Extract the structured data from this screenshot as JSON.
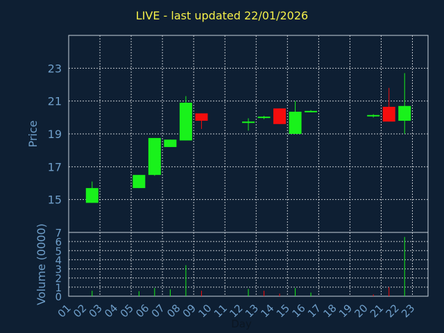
{
  "title": "LIVE - last updated 22/01/2026",
  "chart_data": [
    {
      "type": "candlestick",
      "ylabel": "Price",
      "ylim": [
        13,
        25
      ],
      "y_ticks": [
        15,
        17,
        19,
        21,
        23
      ],
      "grid": true,
      "candles": [
        {
          "day": 2,
          "open": 14.8,
          "close": 15.7,
          "high": 16.1,
          "low": 14.8
        },
        {
          "day": 5,
          "open": 15.7,
          "close": 16.5,
          "high": 16.5,
          "low": 15.7
        },
        {
          "day": 6,
          "open": 16.5,
          "close": 18.75,
          "high": 18.75,
          "low": 16.45
        },
        {
          "day": 7,
          "open": 18.2,
          "close": 18.65,
          "high": 18.65,
          "low": 18.2
        },
        {
          "day": 8,
          "open": 18.6,
          "close": 20.9,
          "high": 21.3,
          "low": 18.6
        },
        {
          "day": 9,
          "open": 20.25,
          "close": 19.8,
          "high": 20.25,
          "low": 19.3
        },
        {
          "day": 12,
          "open": 19.75,
          "close": 19.75,
          "high": 19.95,
          "low": 19.2
        },
        {
          "day": 13,
          "open": 20.05,
          "close": 20.05,
          "high": 20.1,
          "low": 19.9
        },
        {
          "day": 14,
          "open": 20.55,
          "close": 19.6,
          "high": 20.55,
          "low": 19.6
        },
        {
          "day": 15,
          "open": 19.0,
          "close": 20.35,
          "high": 21.0,
          "low": 19.0
        },
        {
          "day": 16,
          "open": 20.4,
          "close": 20.4,
          "high": 20.45,
          "low": 20.35
        },
        {
          "day": 20,
          "open": 20.15,
          "close": 20.15,
          "high": 20.2,
          "low": 20.0
        },
        {
          "day": 21,
          "open": 20.65,
          "close": 19.75,
          "high": 21.8,
          "low": 19.75
        },
        {
          "day": 22,
          "open": 19.8,
          "close": 20.7,
          "high": 22.7,
          "low": 19.0
        }
      ]
    },
    {
      "type": "bar",
      "ylabel": "Volume (0000)",
      "xlabel": "Day",
      "ylim": [
        0,
        7
      ],
      "y_ticks": [
        0,
        1,
        2,
        3,
        4,
        5,
        6,
        7
      ],
      "grid": true,
      "categories": [
        "01",
        "02",
        "03",
        "04",
        "05",
        "06",
        "07",
        "08",
        "09",
        "10",
        "11",
        "12",
        "13",
        "14",
        "15",
        "16",
        "17",
        "18",
        "19",
        "20",
        "21",
        "22",
        "23"
      ],
      "volumes": [
        {
          "day": 2,
          "value": 0.6,
          "up": true
        },
        {
          "day": 5,
          "value": 0.55,
          "up": true
        },
        {
          "day": 6,
          "value": 0.9,
          "up": true
        },
        {
          "day": 7,
          "value": 0.75,
          "up": true
        },
        {
          "day": 8,
          "value": 3.4,
          "up": true
        },
        {
          "day": 9,
          "value": 0.6,
          "up": false
        },
        {
          "day": 12,
          "value": 0.8,
          "up": true
        },
        {
          "day": 13,
          "value": 0.6,
          "up": false
        },
        {
          "day": 14,
          "value": 0.3,
          "up": false
        },
        {
          "day": 15,
          "value": 0.9,
          "up": true
        },
        {
          "day": 16,
          "value": 0.4,
          "up": true
        },
        {
          "day": 20,
          "value": 0.2,
          "up": false
        },
        {
          "day": 21,
          "value": 1.0,
          "up": false
        },
        {
          "day": 22,
          "value": 6.5,
          "up": true
        }
      ]
    }
  ],
  "colors": {
    "background": "#0e1f33",
    "grid": "#ffffff",
    "up": "#19f21b",
    "down": "#f50d0d",
    "title": "#f5f04a",
    "axis_text": "#6f9fca"
  }
}
